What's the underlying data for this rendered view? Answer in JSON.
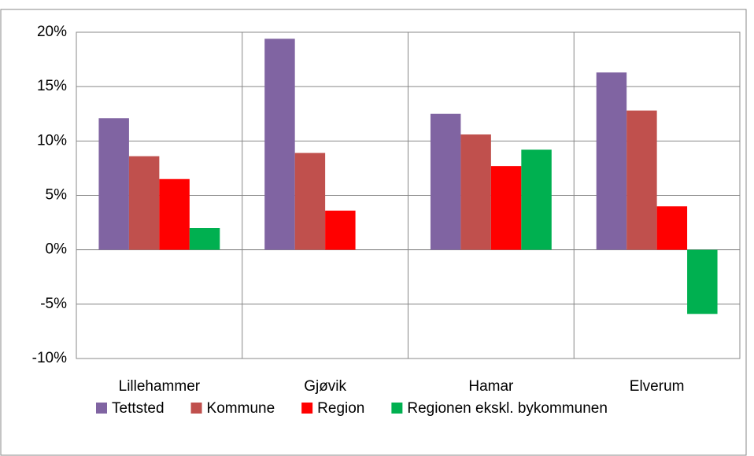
{
  "chart_data": {
    "type": "bar",
    "categories": [
      "Lillehammer",
      "Gjøvik",
      "Hamar",
      "Elverum"
    ],
    "series": [
      {
        "name": "Tettsted",
        "color": "#8064a2",
        "values": [
          12.1,
          19.4,
          12.5,
          16.3
        ]
      },
      {
        "name": "Kommune",
        "color": "#c0504d",
        "values": [
          8.6,
          8.9,
          10.6,
          12.8
        ]
      },
      {
        "name": "Region",
        "color": "#ff0000",
        "values": [
          6.5,
          3.6,
          7.7,
          4.0
        ]
      },
      {
        "name": "Regionen ekskl. bykommunen",
        "color": "#00b050",
        "values": [
          2.0,
          null,
          9.2,
          -5.9
        ]
      }
    ],
    "ylim": [
      -10,
      20
    ],
    "yticks": [
      {
        "value": -10,
        "label": "-10%"
      },
      {
        "value": -5,
        "label": "-5%"
      },
      {
        "value": 0,
        "label": "0%"
      },
      {
        "value": 5,
        "label": "5%"
      },
      {
        "value": 10,
        "label": "10%"
      },
      {
        "value": 15,
        "label": "15%"
      },
      {
        "value": 20,
        "label": "20%"
      }
    ],
    "grid": true,
    "legend": "bottom"
  }
}
